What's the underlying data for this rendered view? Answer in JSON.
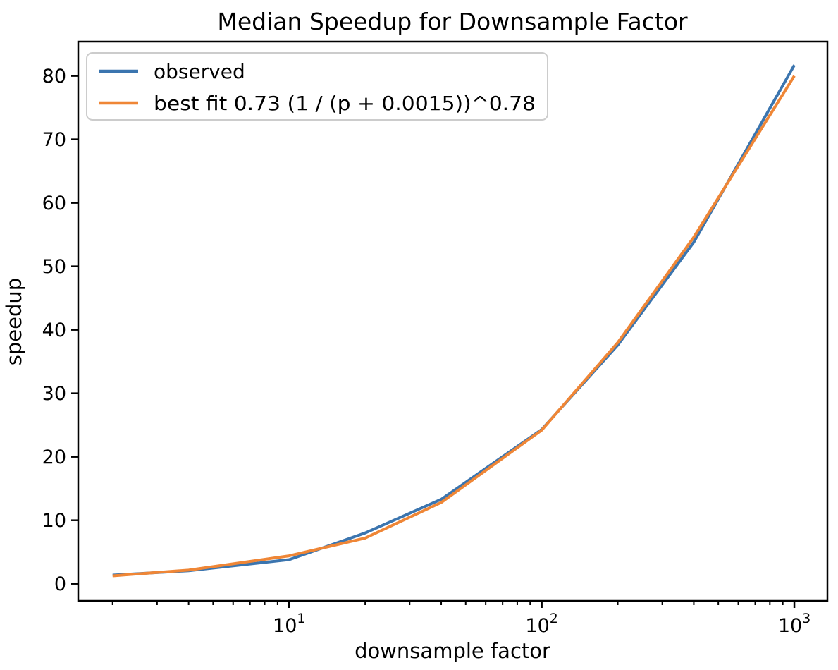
{
  "chart_data": {
    "type": "line",
    "title": "Median Speedup for Downsample Factor",
    "xlabel": "downsample factor",
    "ylabel": "speedup",
    "x_axis_scale": "log",
    "grid": false,
    "legend_position": "upper left",
    "x": [
      2,
      4,
      10,
      20,
      40,
      100,
      200,
      400,
      1000
    ],
    "series": [
      {
        "name": "observed",
        "color": "#3b75af",
        "values": [
          1.35,
          2.05,
          3.8,
          8.0,
          13.3,
          24.3,
          37.6,
          53.8,
          81.7
        ]
      },
      {
        "name": "best fit 0.73 (1 / (p + 0.0015))^0.78",
        "color": "#ef8636",
        "values": [
          1.25,
          2.15,
          4.4,
          7.2,
          12.8,
          24.2,
          38.0,
          54.6,
          80.0
        ]
      }
    ],
    "x_ticks": [
      {
        "base": "10",
        "exp": "1",
        "value": 10
      },
      {
        "base": "10",
        "exp": "2",
        "value": 100
      },
      {
        "base": "10",
        "exp": "3",
        "value": 1000
      }
    ],
    "x_minor_ticks": [
      2,
      3,
      4,
      5,
      6,
      7,
      8,
      9,
      20,
      30,
      40,
      50,
      60,
      70,
      80,
      90,
      200,
      300,
      400,
      500,
      600,
      700,
      800,
      900
    ],
    "y_ticks": [
      0,
      10,
      20,
      30,
      40,
      50,
      60,
      70,
      80
    ],
    "xlim_log": [
      0.165,
      3.131
    ],
    "ylim": [
      -2.7,
      85.4
    ],
    "colors": {
      "axis": "#000000",
      "text": "#000000",
      "legend_border": "#cccccc",
      "background": "#ffffff"
    }
  }
}
